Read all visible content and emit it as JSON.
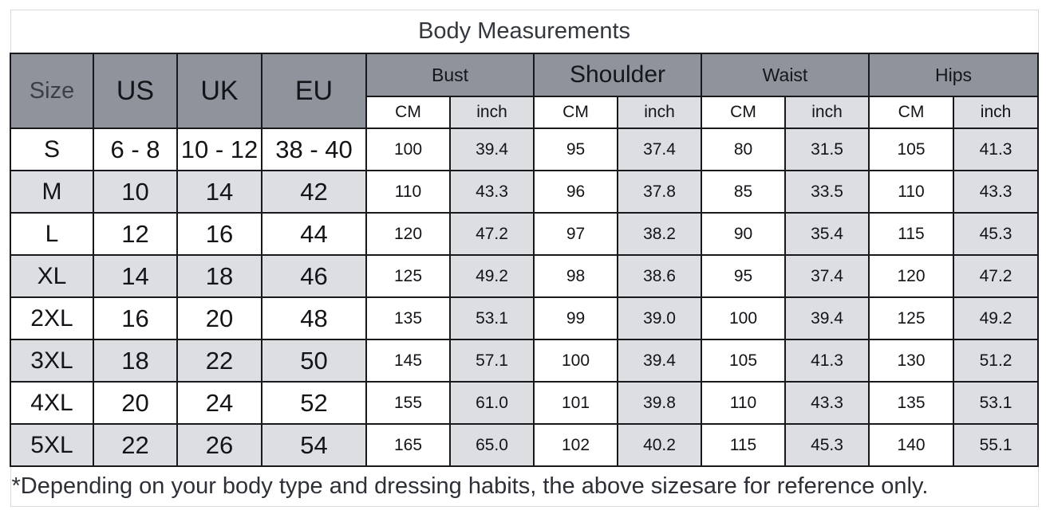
{
  "title": "Body Measurements",
  "footnote": "*Depending on your body type and dressing habits, the above sizesare for reference only.",
  "colors": {
    "header_bg": "#8e939c",
    "shaded_cell_bg": "#dcdee2",
    "grid_border": "#17191d",
    "outer_border": "#d9d9d9",
    "text_dark": "#121418"
  },
  "header": {
    "size_label": "Size",
    "us_label": "US",
    "uk_label": "UK",
    "eu_label": "EU",
    "groups": [
      {
        "label": "Bust"
      },
      {
        "label": "Shoulder"
      },
      {
        "label": "Waist"
      },
      {
        "label": "Hips"
      }
    ],
    "unit_cm": "CM",
    "unit_inch": "inch"
  },
  "rows": [
    {
      "size": "S",
      "us": "6 - 8",
      "uk": "10 - 12",
      "eu": "38 - 40",
      "bust_cm": "100",
      "bust_inch": "39.4",
      "shoulder_cm": "95",
      "shoulder_inch": "37.4",
      "waist_cm": "80",
      "waist_inch": "31.5",
      "hips_cm": "105",
      "hips_inch": "41.3",
      "shaded": false
    },
    {
      "size": "M",
      "us": "10",
      "uk": "14",
      "eu": "42",
      "bust_cm": "110",
      "bust_inch": "43.3",
      "shoulder_cm": "96",
      "shoulder_inch": "37.8",
      "waist_cm": "85",
      "waist_inch": "33.5",
      "hips_cm": "110",
      "hips_inch": "43.3",
      "shaded": true
    },
    {
      "size": "L",
      "us": "12",
      "uk": "16",
      "eu": "44",
      "bust_cm": "120",
      "bust_inch": "47.2",
      "shoulder_cm": "97",
      "shoulder_inch": "38.2",
      "waist_cm": "90",
      "waist_inch": "35.4",
      "hips_cm": "115",
      "hips_inch": "45.3",
      "shaded": false
    },
    {
      "size": "XL",
      "us": "14",
      "uk": "18",
      "eu": "46",
      "bust_cm": "125",
      "bust_inch": "49.2",
      "shoulder_cm": "98",
      "shoulder_inch": "38.6",
      "waist_cm": "95",
      "waist_inch": "37.4",
      "hips_cm": "120",
      "hips_inch": "47.2",
      "shaded": true
    },
    {
      "size": "2XL",
      "us": "16",
      "uk": "20",
      "eu": "48",
      "bust_cm": "135",
      "bust_inch": "53.1",
      "shoulder_cm": "99",
      "shoulder_inch": "39.0",
      "waist_cm": "100",
      "waist_inch": "39.4",
      "hips_cm": "125",
      "hips_inch": "49.2",
      "shaded": false
    },
    {
      "size": "3XL",
      "us": "18",
      "uk": "22",
      "eu": "50",
      "bust_cm": "145",
      "bust_inch": "57.1",
      "shoulder_cm": "100",
      "shoulder_inch": "39.4",
      "waist_cm": "105",
      "waist_inch": "41.3",
      "hips_cm": "130",
      "hips_inch": "51.2",
      "shaded": true
    },
    {
      "size": "4XL",
      "us": "20",
      "uk": "24",
      "eu": "52",
      "bust_cm": "155",
      "bust_inch": "61.0",
      "shoulder_cm": "101",
      "shoulder_inch": "39.8",
      "waist_cm": "110",
      "waist_inch": "43.3",
      "hips_cm": "135",
      "hips_inch": "53.1",
      "shaded": false
    },
    {
      "size": "5XL",
      "us": "22",
      "uk": "26",
      "eu": "54",
      "bust_cm": "165",
      "bust_inch": "65.0",
      "shoulder_cm": "102",
      "shoulder_inch": "40.2",
      "waist_cm": "115",
      "waist_inch": "45.3",
      "hips_cm": "140",
      "hips_inch": "55.1",
      "shaded": true
    }
  ]
}
